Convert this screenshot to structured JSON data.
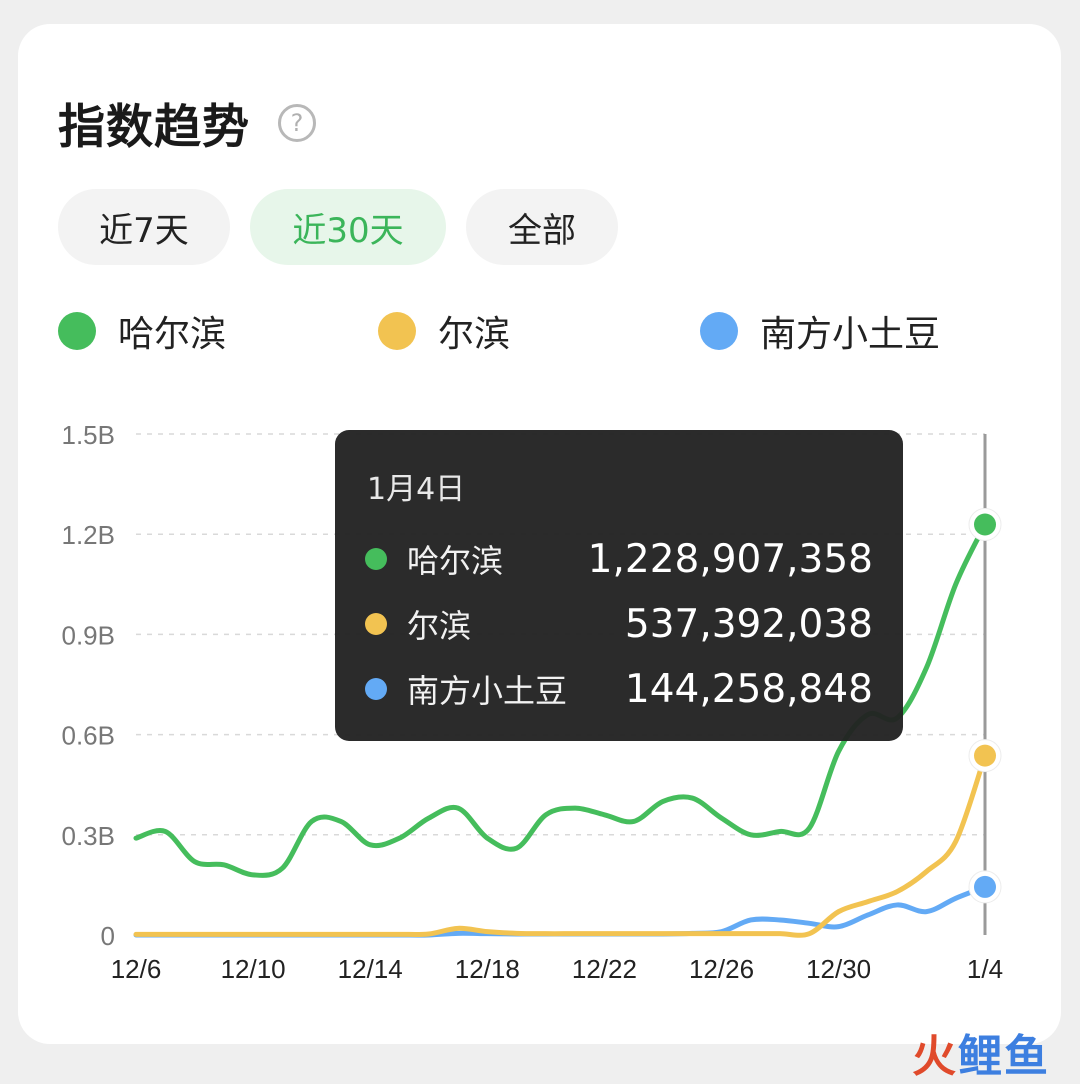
{
  "header": {
    "title": "指数趋势",
    "help_icon": "question-circle-icon",
    "help_glyph": "?"
  },
  "tabs": [
    {
      "label": "近7天",
      "active": false
    },
    {
      "label": "近30天",
      "active": true
    },
    {
      "label": "全部",
      "active": false
    }
  ],
  "colors": {
    "green": "#45bd5c",
    "yellow": "#f2c351",
    "blue": "#63aaf5",
    "grid": "#d9d9d9",
    "axis_text": "#777777",
    "tab_active_text": "#3bb55a",
    "tab_active_bg": "#e7f6ea",
    "tooltip_bg": "#222222"
  },
  "tooltip": {
    "date": "1月4日",
    "rows": [
      {
        "name": "哈尔滨",
        "value": "1,228,907,358",
        "color": "#45bd5c"
      },
      {
        "name": "尔滨",
        "value": "537,392,038",
        "color": "#f2c351"
      },
      {
        "name": "南方小土豆",
        "value": "144,258,848",
        "color": "#63aaf5"
      }
    ]
  },
  "watermark": {
    "fire_char": "火",
    "rest": "鲤鱼"
  },
  "chart_data": {
    "type": "line",
    "x": [
      "12/6",
      "12/7",
      "12/8",
      "12/9",
      "12/10",
      "12/11",
      "12/12",
      "12/13",
      "12/14",
      "12/15",
      "12/16",
      "12/17",
      "12/18",
      "12/19",
      "12/20",
      "12/21",
      "12/22",
      "12/23",
      "12/24",
      "12/25",
      "12/26",
      "12/27",
      "12/28",
      "12/29",
      "12/30",
      "12/31",
      "1/1",
      "1/2",
      "1/3",
      "1/4"
    ],
    "xticks": [
      "12/6",
      "12/10",
      "12/14",
      "12/18",
      "12/22",
      "12/26",
      "12/30",
      "1/4"
    ],
    "yticks": [
      {
        "value": 0,
        "label": "0"
      },
      {
        "value": 0.3,
        "label": "0.3B"
      },
      {
        "value": 0.6,
        "label": "0.6B"
      },
      {
        "value": 0.9,
        "label": "0.9B"
      },
      {
        "value": 1.2,
        "label": "1.2B"
      },
      {
        "value": 1.5,
        "label": "1.5B"
      }
    ],
    "ylim": [
      0,
      1.5
    ],
    "grid": true,
    "highlight_index": 29,
    "series": [
      {
        "name": "哈尔滨",
        "color": "#45bd5c",
        "values": [
          0.29,
          0.31,
          0.22,
          0.21,
          0.18,
          0.2,
          0.34,
          0.34,
          0.27,
          0.29,
          0.35,
          0.38,
          0.29,
          0.26,
          0.36,
          0.38,
          0.36,
          0.34,
          0.4,
          0.41,
          0.35,
          0.3,
          0.31,
          0.32,
          0.55,
          0.66,
          0.65,
          0.8,
          1.05,
          1.229
        ]
      },
      {
        "name": "尔滨",
        "color": "#f2c351",
        "values": [
          0.002,
          0.002,
          0.002,
          0.002,
          0.002,
          0.002,
          0.002,
          0.002,
          0.002,
          0.002,
          0.003,
          0.02,
          0.01,
          0.005,
          0.004,
          0.004,
          0.004,
          0.004,
          0.004,
          0.004,
          0.004,
          0.004,
          0.004,
          0.004,
          0.07,
          0.1,
          0.13,
          0.19,
          0.28,
          0.537
        ]
      },
      {
        "name": "南方小土豆",
        "color": "#63aaf5",
        "values": [
          0,
          0,
          0,
          0,
          0,
          0,
          0,
          0,
          0,
          0,
          0,
          0.005,
          0.004,
          0.003,
          0.003,
          0.003,
          0.003,
          0.003,
          0.003,
          0.005,
          0.01,
          0.045,
          0.045,
          0.035,
          0.025,
          0.06,
          0.09,
          0.07,
          0.11,
          0.144
        ]
      }
    ]
  }
}
